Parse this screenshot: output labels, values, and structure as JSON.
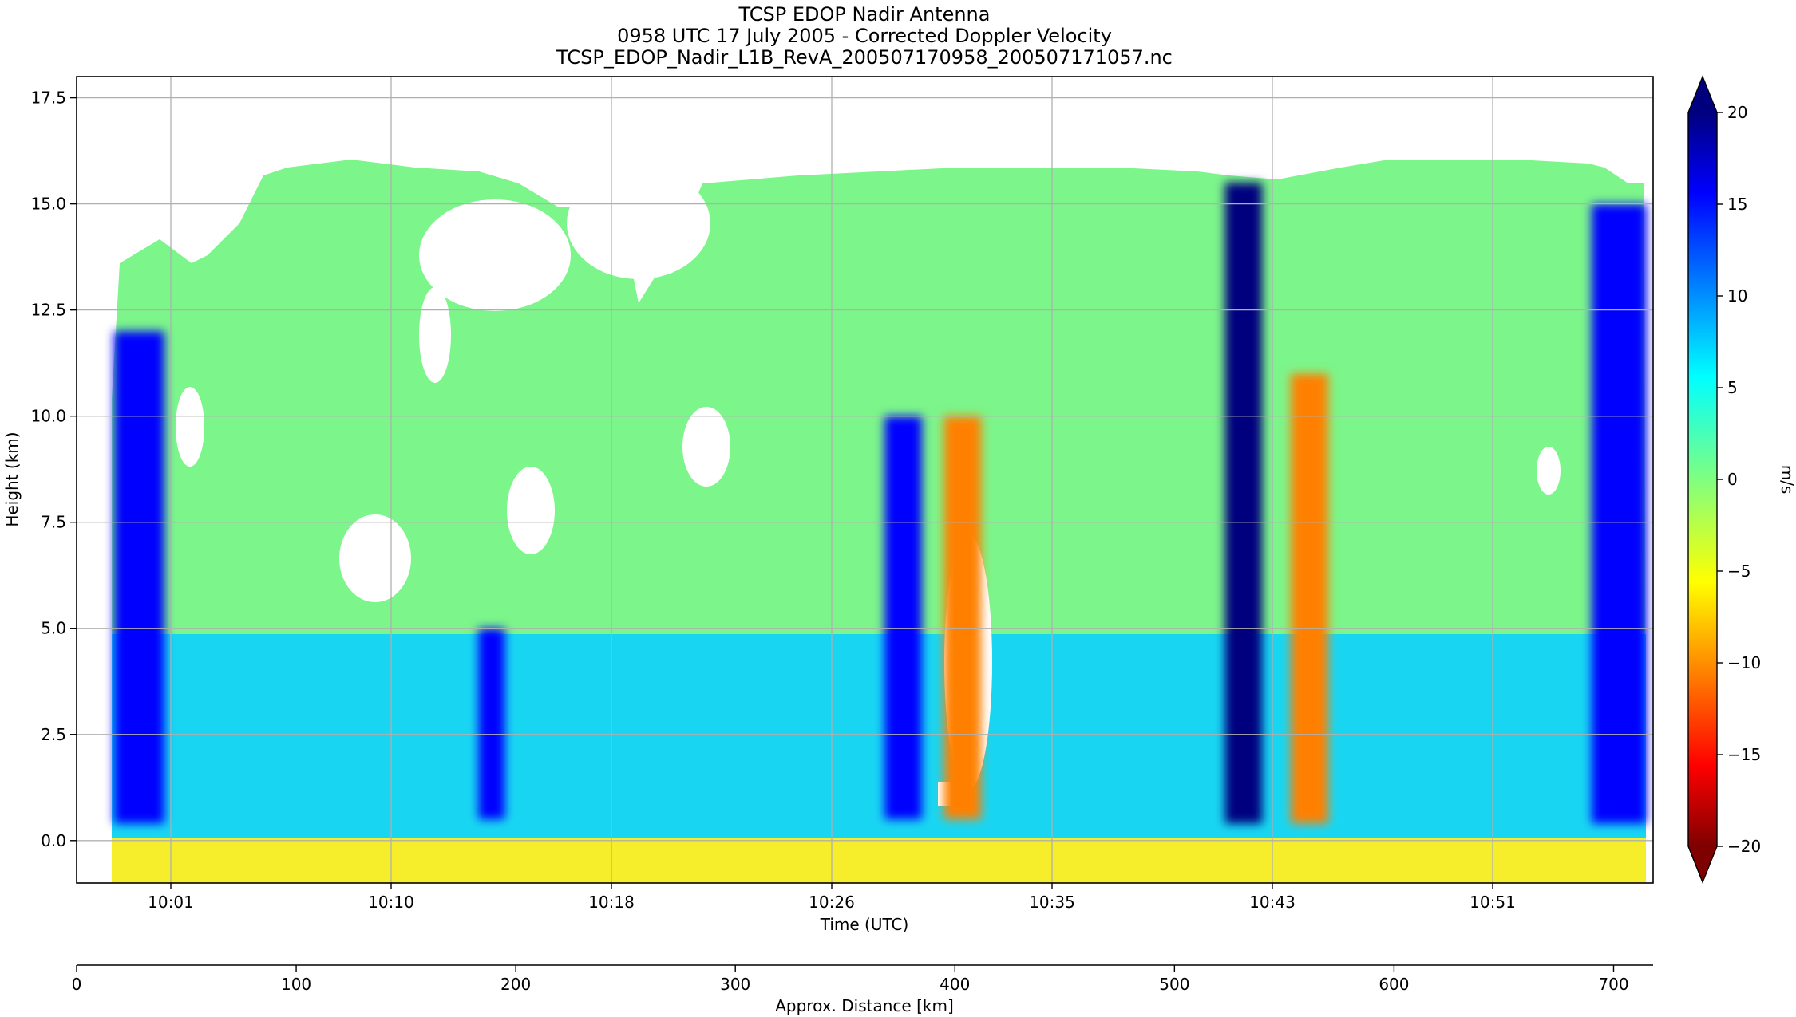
{
  "chart_data": {
    "type": "heatmap",
    "title_lines": [
      "TCSP EDOP Nadir Antenna",
      "0958 UTC 17 July 2005 - Corrected Doppler Velocity",
      "TCSP_EDOP_Nadir_L1B_RevA_200507170958_200507171057.nc"
    ],
    "xlabel": "Time (UTC)",
    "ylabel": "Height (km)",
    "ylim": [
      -1.0,
      18.0
    ],
    "yticks": [
      0.0,
      2.5,
      5.0,
      7.5,
      10.0,
      12.5,
      15.0,
      17.5
    ],
    "ytick_labels": [
      "0.0",
      "2.5",
      "5.0",
      "7.5",
      "10.0",
      "12.5",
      "15.0",
      "17.5"
    ],
    "xticks": [
      "10:01",
      "10:10",
      "10:18",
      "10:26",
      "10:35",
      "10:43",
      "10:51"
    ],
    "grid": true,
    "secondary_axis": {
      "label": "Approx. Distance [km]",
      "range": [
        0,
        718
      ],
      "ticks": [
        0,
        100,
        200,
        300,
        400,
        500,
        600,
        700
      ],
      "tick_labels": [
        "0",
        "100",
        "200",
        "300",
        "400",
        "500",
        "600",
        "700"
      ]
    },
    "colorbar": {
      "label": "m/s",
      "range": [
        -20,
        20
      ],
      "ticks": [
        -20,
        -15,
        -10,
        -5,
        0,
        5,
        10,
        15,
        20
      ],
      "tick_labels": [
        "−20",
        "−15",
        "−10",
        "−5",
        "0",
        "5",
        "10",
        "15",
        "20"
      ],
      "colormap": "jet",
      "extend": "both"
    },
    "features": [
      {
        "x_km": [
          17,
          40
        ],
        "y_km": [
          0.4,
          12.0
        ],
        "value": 15
      },
      {
        "x_km": [
          183,
          195
        ],
        "y_km": [
          0.5,
          5.0
        ],
        "value": 14
      },
      {
        "x_km": [
          368,
          385
        ],
        "y_km": [
          0.5,
          10.0
        ],
        "value": 17
      },
      {
        "x_km": [
          395,
          412
        ],
        "y_km": [
          0.5,
          10.0
        ],
        "value": -10
      },
      {
        "x_km": [
          523,
          540
        ],
        "y_km": [
          0.4,
          15.5
        ],
        "value": 18
      },
      {
        "x_km": [
          553,
          570
        ],
        "y_km": [
          0.4,
          11.0
        ],
        "value": -12
      },
      {
        "x_km": [
          690,
          715
        ],
        "y_km": [
          0.4,
          15.0
        ],
        "value": 15
      }
    ]
  },
  "colors": {
    "jet": [
      "#7f0000",
      "#ff0000",
      "#ff8000",
      "#ffff00",
      "#80ff80",
      "#00ffff",
      "#0080ff",
      "#0000ff",
      "#00007f"
    ],
    "grid": "#b0b0b0"
  }
}
